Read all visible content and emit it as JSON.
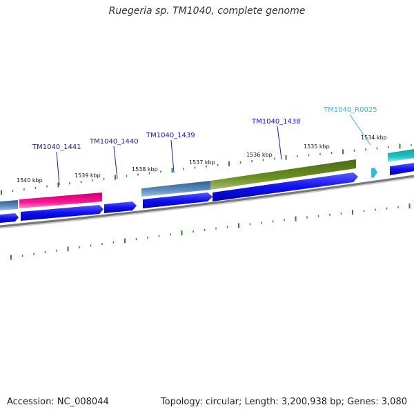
{
  "title": "Ruegeria sp. TM1040, complete genome",
  "footer": {
    "accession": "Accession: NC_008044",
    "summary": "Topology: circular; Length: 3,200,938 bp; Genes: 3,080"
  },
  "ticks": [
    {
      "label": "1540 kbp"
    },
    {
      "label": "1539 kbp"
    },
    {
      "label": "1538 kbp"
    },
    {
      "label": "1537 kbp"
    },
    {
      "label": "1536 kbp"
    },
    {
      "label": "1535 kbp"
    },
    {
      "label": "1534 kbp"
    }
  ],
  "features": [
    {
      "label": "TM1040_1441",
      "color": "#1414c8"
    },
    {
      "label": "TM1040_1440",
      "color": "#1414c8"
    },
    {
      "label": "TM1040_1439",
      "color": "#1414c8"
    },
    {
      "label": "TM1040_1438",
      "color": "#1414c8"
    },
    {
      "label": "TM1040_R0025",
      "color": "#33bbdd"
    }
  ],
  "colors": {
    "gene_blue": "#1010ee",
    "steel_blue": "#4f7fb0",
    "magenta": "#ff1493",
    "olive": "#6b8e23",
    "cyan": "#20c5c5",
    "tick_green": "#2a8a2a",
    "backbone": "#888888"
  }
}
